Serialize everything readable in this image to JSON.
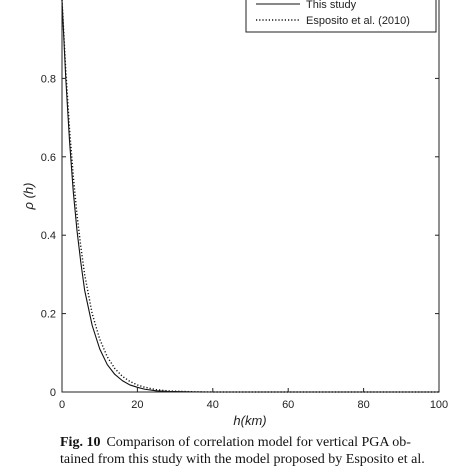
{
  "chart_data": {
    "type": "line",
    "title": "",
    "xlabel": "h(km)",
    "ylabel": "ρ (h)",
    "xlim": [
      0,
      100
    ],
    "ylim": [
      0,
      1
    ],
    "xticks": [
      0,
      20,
      40,
      60,
      80,
      100
    ],
    "yticks": [
      0,
      0.2,
      0.4,
      0.6,
      0.8
    ],
    "xtick_labels": [
      "0",
      "20",
      "40",
      "60",
      "80",
      "100"
    ],
    "ytick_labels": [
      "0",
      "0.2",
      "0.4",
      "0.6",
      "0.8"
    ],
    "grid": false,
    "legend_position": "top-right",
    "x": [
      0,
      1,
      2,
      3,
      4,
      5,
      6,
      8,
      10,
      12,
      14,
      16,
      18,
      20,
      22,
      25,
      28,
      30,
      35,
      40,
      50,
      60,
      70,
      80,
      90,
      100
    ],
    "series": [
      {
        "name": "This study",
        "style": "solid",
        "color": "#111111",
        "values": [
          1.0,
          0.8,
          0.64,
          0.51,
          0.41,
          0.33,
          0.26,
          0.17,
          0.11,
          0.07,
          0.045,
          0.029,
          0.018,
          0.012,
          0.007,
          0.003,
          0.0015,
          0.001,
          0.0002,
          0.0,
          0.0,
          0.0,
          0.0,
          0.0,
          0.0,
          0.0
        ]
      },
      {
        "name": "Esposito et al. (2010)",
        "style": "dotted",
        "color": "#111111",
        "values": [
          1.0,
          0.82,
          0.67,
          0.55,
          0.45,
          0.37,
          0.3,
          0.2,
          0.135,
          0.09,
          0.06,
          0.04,
          0.027,
          0.018,
          0.012,
          0.006,
          0.003,
          0.002,
          0.0005,
          0.0,
          0.0,
          0.0,
          0.0,
          0.0,
          0.0,
          0.0
        ]
      }
    ]
  },
  "caption": {
    "fig_label": "Fig. 10",
    "line1": "Comparison of correlation model for vertical PGA ob-",
    "line2": "tained from this study with the model proposed by Esposito et al."
  }
}
